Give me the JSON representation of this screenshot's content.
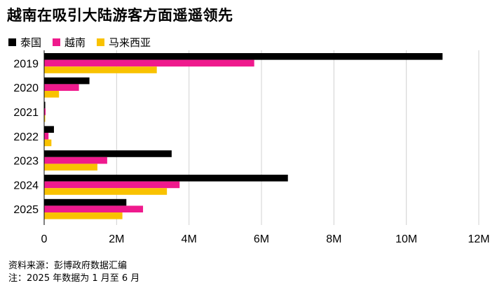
{
  "title": "越南在吸引大陆游客方面遥遥领先",
  "legend": [
    {
      "label": "泰国",
      "color": "#000000"
    },
    {
      "label": "越南",
      "color": "#ef1a8d"
    },
    {
      "label": "马来西亚",
      "color": "#f9c200"
    }
  ],
  "footnotes": {
    "source": "资料来源：彭博政府数据汇编",
    "note": "注：2025 年数据为 1 月至 6 月"
  },
  "chart_data": {
    "type": "bar",
    "orientation": "horizontal",
    "title": "越南在吸引大陆游客方面遥遥领先",
    "categories": [
      "2019",
      "2020",
      "2021",
      "2022",
      "2023",
      "2024",
      "2025"
    ],
    "series": [
      {
        "name": "泰国",
        "color": "#000000",
        "values": [
          11.0,
          1.25,
          0.03,
          0.27,
          3.52,
          6.73,
          2.27
        ]
      },
      {
        "name": "越南",
        "color": "#ef1a8d",
        "values": [
          5.8,
          0.96,
          0.04,
          0.12,
          1.74,
          3.74,
          2.73
        ]
      },
      {
        "name": "马来西亚",
        "color": "#f9c200",
        "values": [
          3.11,
          0.41,
          0.02,
          0.2,
          1.47,
          3.39,
          2.16
        ]
      }
    ],
    "xlim": [
      0,
      12
    ],
    "xticks": [
      0,
      2,
      4,
      6,
      8,
      10,
      12
    ],
    "xtick_labels": [
      "0",
      "2M",
      "4M",
      "6M",
      "8M",
      "10M",
      "12M"
    ],
    "grid": "vertical",
    "legend_position": "top-left"
  }
}
